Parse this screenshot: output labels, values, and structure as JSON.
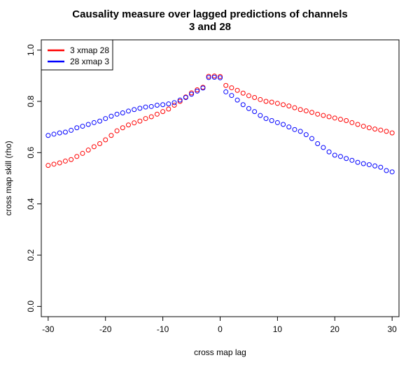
{
  "chart_data": {
    "type": "scatter",
    "title_lines": [
      "Causality measure over lagged predictions of channels",
      "3 and 28"
    ],
    "xlabel": "cross map lag",
    "ylabel": "cross map skill (rho)",
    "xlim": [
      -31.2,
      31.2
    ],
    "ylim": [
      -0.04,
      1.04
    ],
    "x_ticks": [
      -30,
      -20,
      -10,
      0,
      10,
      20,
      30
    ],
    "y_ticks": [
      0.0,
      0.2,
      0.4,
      0.6,
      0.8,
      1.0
    ],
    "x_tick_labels": [
      "-30",
      "-20",
      "-10",
      "0",
      "10",
      "20",
      "30"
    ],
    "y_tick_labels": [
      "0.0",
      "0.2",
      "0.4",
      "0.6",
      "0.8",
      "1.0"
    ],
    "legend_position": "top-left",
    "x": [
      -30,
      -29,
      -28,
      -27,
      -26,
      -25,
      -24,
      -23,
      -22,
      -21,
      -20,
      -19,
      -18,
      -17,
      -16,
      -15,
      -14,
      -13,
      -12,
      -11,
      -10,
      -9,
      -8,
      -7,
      -6,
      -5,
      -4,
      -3,
      -2,
      -1,
      0,
      1,
      2,
      3,
      4,
      5,
      6,
      7,
      8,
      9,
      10,
      11,
      12,
      13,
      14,
      15,
      16,
      17,
      18,
      19,
      20,
      21,
      22,
      23,
      24,
      25,
      26,
      27,
      28,
      29,
      30
    ],
    "series": [
      {
        "name": "3 xmap 28",
        "color": "#ff0000",
        "values": [
          0.55,
          0.555,
          0.56,
          0.567,
          0.573,
          0.585,
          0.597,
          0.61,
          0.623,
          0.635,
          0.65,
          0.667,
          0.685,
          0.697,
          0.708,
          0.716,
          0.723,
          0.733,
          0.74,
          0.75,
          0.76,
          0.77,
          0.785,
          0.8,
          0.817,
          0.833,
          0.845,
          0.855,
          0.898,
          0.899,
          0.897,
          0.862,
          0.853,
          0.843,
          0.832,
          0.822,
          0.815,
          0.807,
          0.8,
          0.797,
          0.792,
          0.787,
          0.782,
          0.775,
          0.768,
          0.763,
          0.757,
          0.75,
          0.745,
          0.74,
          0.735,
          0.73,
          0.725,
          0.717,
          0.71,
          0.703,
          0.697,
          0.692,
          0.688,
          0.683,
          0.677
        ]
      },
      {
        "name": "28 xmap 3",
        "color": "#0000ff",
        "values": [
          0.667,
          0.672,
          0.677,
          0.68,
          0.687,
          0.697,
          0.703,
          0.71,
          0.717,
          0.723,
          0.733,
          0.742,
          0.75,
          0.755,
          0.762,
          0.768,
          0.773,
          0.778,
          0.78,
          0.785,
          0.787,
          0.79,
          0.795,
          0.805,
          0.815,
          0.828,
          0.84,
          0.852,
          0.893,
          0.894,
          0.892,
          0.837,
          0.823,
          0.805,
          0.787,
          0.772,
          0.76,
          0.745,
          0.733,
          0.725,
          0.717,
          0.71,
          0.7,
          0.69,
          0.683,
          0.67,
          0.655,
          0.635,
          0.62,
          0.603,
          0.59,
          0.585,
          0.577,
          0.57,
          0.562,
          0.557,
          0.553,
          0.548,
          0.543,
          0.53,
          0.525
        ]
      }
    ]
  }
}
